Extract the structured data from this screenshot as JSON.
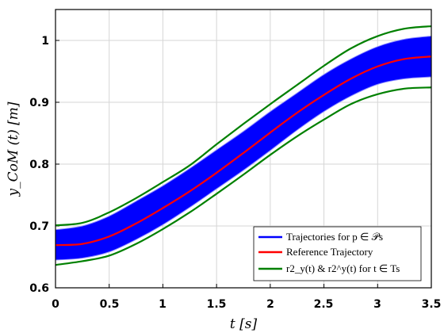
{
  "chart_data": {
    "type": "line",
    "xlabel": "t [s]",
    "ylabel": "y_CoM (t) [m]",
    "xlim": [
      0,
      3.5
    ],
    "ylim": [
      0.6,
      1.05
    ],
    "grid": true,
    "legend_position": "bottom-right",
    "x_ticks": [
      "0",
      "0.5",
      "1",
      "1.5",
      "2",
      "2.5",
      "3",
      "3.5"
    ],
    "y_ticks": [
      "0.6",
      "0.7",
      "0.8",
      "0.9",
      "1"
    ],
    "series": [
      {
        "name": "Trajectories for p ∈ 𝒫s",
        "kind": "band",
        "color": "#0000ff",
        "x": [
          0,
          0.25,
          0.5,
          0.75,
          1,
          1.25,
          1.5,
          1.75,
          2,
          2.25,
          2.5,
          2.75,
          3,
          3.25,
          3.5
        ],
        "upper": [
          0.694,
          0.7,
          0.716,
          0.74,
          0.765,
          0.793,
          0.823,
          0.853,
          0.885,
          0.915,
          0.945,
          0.97,
          0.99,
          1.002,
          1.007
        ],
        "lower": [
          0.645,
          0.648,
          0.658,
          0.678,
          0.702,
          0.73,
          0.76,
          0.79,
          0.822,
          0.855,
          0.885,
          0.91,
          0.929,
          0.938,
          0.941
        ]
      },
      {
        "name": "Reference Trajectory",
        "color": "#ff0000",
        "x": [
          0,
          0.25,
          0.5,
          0.75,
          1,
          1.25,
          1.5,
          1.75,
          2,
          2.25,
          2.5,
          2.75,
          3,
          3.25,
          3.5
        ],
        "y": [
          0.669,
          0.671,
          0.683,
          0.704,
          0.729,
          0.756,
          0.786,
          0.818,
          0.851,
          0.883,
          0.912,
          0.938,
          0.958,
          0.97,
          0.974
        ]
      },
      {
        "name": "r2_y(t) & r2^y(t) for t ∈ Ts",
        "color": "#008000",
        "x": [
          0,
          0.25,
          0.5,
          0.75,
          1,
          1.25,
          1.5,
          1.75,
          2,
          2.25,
          2.5,
          2.75,
          3,
          3.25,
          3.5
        ],
        "upper": [
          0.701,
          0.705,
          0.722,
          0.745,
          0.771,
          0.798,
          0.832,
          0.865,
          0.897,
          0.928,
          0.959,
          0.987,
          1.007,
          1.019,
          1.023
        ],
        "lower": [
          0.637,
          0.643,
          0.652,
          0.671,
          0.695,
          0.722,
          0.752,
          0.783,
          0.815,
          0.845,
          0.872,
          0.897,
          0.913,
          0.922,
          0.924
        ]
      }
    ]
  }
}
